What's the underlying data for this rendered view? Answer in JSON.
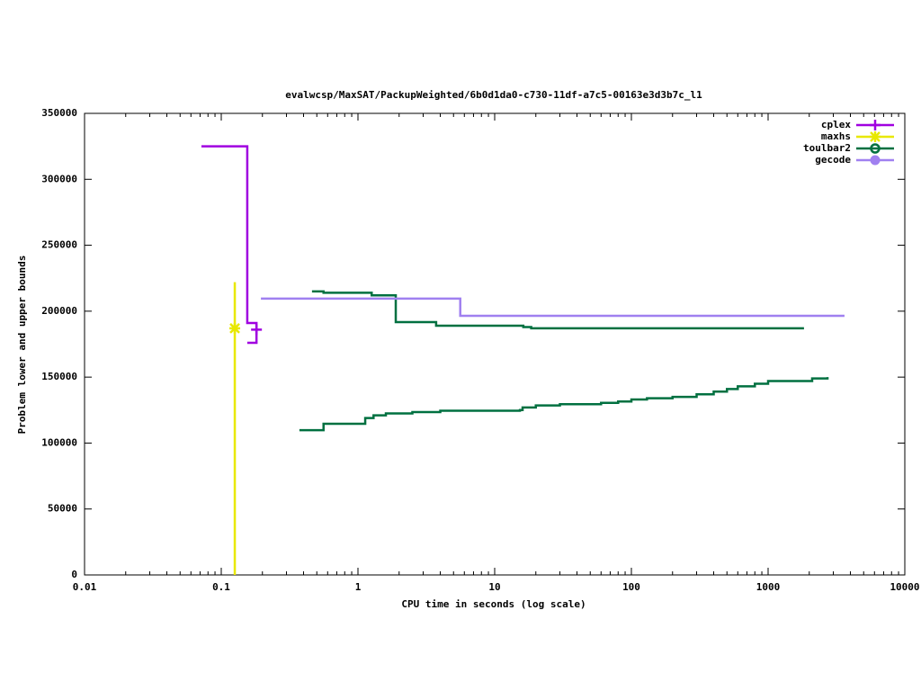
{
  "chart_data": {
    "type": "line",
    "title": "evalwcsp/MaxSAT/PackupWeighted/6b0d1da0-c730-11df-a7c5-00163e3d3b7c_l1",
    "x_label": "CPU time in seconds (log scale)",
    "y_label": "Problem lower and upper bounds",
    "x_log": true,
    "xlim": [
      0.01,
      10000
    ],
    "xticks": [
      0.01,
      0.1,
      1,
      10,
      100,
      1000,
      10000
    ],
    "ylim": [
      0,
      350000
    ],
    "yticks": [
      0,
      50000,
      100000,
      150000,
      200000,
      250000,
      300000,
      350000
    ],
    "legend": "top-right",
    "series": [
      {
        "name": "cplex",
        "color": "#a000e0",
        "marker": "plus",
        "step": false,
        "x": [
          0.0716,
          0.155,
          0.155,
          0.181,
          0.181,
          0.155
        ],
        "values": [
          325000,
          325000,
          191000,
          191000,
          176000,
          176000
        ],
        "marker_x": [
          0.181
        ],
        "marker_values": [
          186000
        ]
      },
      {
        "name": "maxhs",
        "color": "#e8e800",
        "marker": "star",
        "step": false,
        "x": [
          0.1256,
          0.1256
        ],
        "values": [
          0,
          222000
        ],
        "marker_x": [
          0.1256
        ],
        "marker_values": [
          187000
        ]
      },
      {
        "name": "toulbar2",
        "color": "#007040",
        "marker": "circle",
        "step": true,
        "x": [
          0.461,
          0.56,
          1.26,
          1.89,
          3.73,
          16.2,
          18.5,
          1830,
          null,
          0.373,
          0.56,
          1.13,
          1.3,
          1.6,
          2.5,
          4,
          15.3,
          16,
          20,
          30,
          60,
          80,
          100,
          130,
          200,
          300,
          400,
          500,
          600,
          800,
          1000,
          2000,
          2100,
          2720
        ],
        "values": [
          215000,
          214000,
          212000,
          191700,
          189000,
          188000,
          187000,
          187000,
          null,
          109800,
          114600,
          119000,
          121000,
          122500,
          123500,
          124500,
          125000,
          127000,
          128500,
          129500,
          130500,
          131500,
          133000,
          134000,
          135000,
          137000,
          139000,
          141000,
          143000,
          145000,
          147000,
          147000,
          149000,
          150000
        ]
      },
      {
        "name": "gecode",
        "color": "#a080f0",
        "marker": "dot",
        "step": true,
        "x": [
          0.195,
          5.6,
          3620
        ],
        "values": [
          209500,
          196500,
          196500
        ]
      }
    ]
  }
}
